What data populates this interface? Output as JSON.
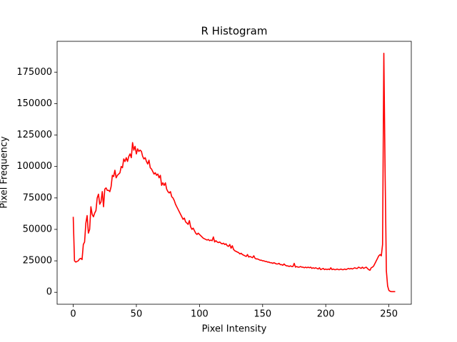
{
  "chart_data": {
    "type": "line",
    "title": "R Histogram",
    "x_label": "Pixel Intensity",
    "y_label": "Pixel Frequency",
    "color": "#ff0000",
    "x": [
      0,
      1,
      2,
      3,
      4,
      5,
      6,
      7,
      8,
      9,
      10,
      11,
      12,
      13,
      14,
      15,
      16,
      17,
      18,
      19,
      20,
      21,
      22,
      23,
      24,
      25,
      26,
      27,
      28,
      29,
      30,
      31,
      32,
      33,
      34,
      35,
      36,
      37,
      38,
      39,
      40,
      41,
      42,
      43,
      44,
      45,
      46,
      47,
      48,
      49,
      50,
      51,
      52,
      53,
      54,
      55,
      56,
      57,
      58,
      59,
      60,
      61,
      62,
      63,
      64,
      65,
      66,
      67,
      68,
      69,
      70,
      71,
      72,
      73,
      74,
      75,
      76,
      77,
      78,
      79,
      80,
      81,
      82,
      83,
      84,
      85,
      86,
      87,
      88,
      89,
      90,
      91,
      92,
      93,
      94,
      95,
      96,
      97,
      98,
      99,
      100,
      101,
      102,
      103,
      104,
      105,
      106,
      107,
      108,
      109,
      110,
      111,
      112,
      113,
      114,
      115,
      116,
      117,
      118,
      119,
      120,
      121,
      122,
      123,
      124,
      125,
      126,
      127,
      128,
      129,
      130,
      131,
      132,
      133,
      134,
      135,
      136,
      137,
      138,
      139,
      140,
      141,
      142,
      143,
      144,
      145,
      146,
      147,
      148,
      149,
      150,
      151,
      152,
      153,
      154,
      155,
      156,
      157,
      158,
      159,
      160,
      161,
      162,
      163,
      164,
      165,
      166,
      167,
      168,
      169,
      170,
      171,
      172,
      173,
      174,
      175,
      176,
      177,
      178,
      179,
      180,
      181,
      182,
      183,
      184,
      185,
      186,
      187,
      188,
      189,
      190,
      191,
      192,
      193,
      194,
      195,
      196,
      197,
      198,
      199,
      200,
      201,
      202,
      203,
      204,
      205,
      206,
      207,
      208,
      209,
      210,
      211,
      212,
      213,
      214,
      215,
      216,
      217,
      218,
      219,
      220,
      221,
      222,
      223,
      224,
      225,
      226,
      227,
      228,
      229,
      230,
      231,
      232,
      233,
      234,
      235,
      236,
      237,
      238,
      239,
      240,
      241,
      242,
      243,
      244,
      245,
      246,
      247,
      248,
      249,
      250,
      251,
      252,
      253,
      254,
      255
    ],
    "values": [
      60000,
      25000,
      24000,
      24500,
      25000,
      26500,
      27000,
      26000,
      38000,
      40000,
      55000,
      61000,
      47000,
      50000,
      68000,
      62000,
      60000,
      63000,
      65000,
      75000,
      78000,
      70000,
      72000,
      80000,
      68000,
      82000,
      83000,
      81000,
      81000,
      80000,
      84000,
      93000,
      92000,
      97000,
      91000,
      93000,
      94000,
      95000,
      100000,
      99000,
      106000,
      104000,
      107000,
      104000,
      108000,
      110000,
      107000,
      119000,
      113000,
      116000,
      110000,
      114000,
      112000,
      113000,
      112000,
      108000,
      106000,
      107000,
      104000,
      102000,
      105000,
      99000,
      98000,
      96000,
      94000,
      95000,
      93000,
      94000,
      91000,
      93000,
      85000,
      87000,
      85000,
      87000,
      82000,
      80000,
      79000,
      80000,
      76000,
      75000,
      73000,
      70000,
      68000,
      66000,
      64000,
      62000,
      60000,
      58000,
      59000,
      56000,
      55000,
      54000,
      57000,
      52000,
      50000,
      51000,
      49000,
      47000,
      46000,
      47000,
      46000,
      45000,
      44000,
      43000,
      42500,
      42000,
      41500,
      42000,
      41000,
      41500,
      41000,
      44000,
      40000,
      41000,
      40000,
      39500,
      40000,
      39000,
      38500,
      39000,
      38000,
      38500,
      37000,
      36500,
      38000,
      35000,
      37000,
      34000,
      33000,
      32500,
      32000,
      31500,
      30500,
      31000,
      30000,
      29500,
      29000,
      28500,
      30000,
      28000,
      28500,
      28000,
      27500,
      29000,
      27000,
      26500,
      26500,
      26000,
      25500,
      25500,
      25000,
      25000,
      24500,
      24500,
      24000,
      24000,
      23500,
      23500,
      23000,
      23500,
      23000,
      22500,
      22500,
      23000,
      22000,
      22000,
      21500,
      22500,
      21500,
      21000,
      21000,
      20500,
      21000,
      20500,
      20500,
      23000,
      20000,
      20500,
      20000,
      20000,
      20500,
      20000,
      20000,
      19500,
      20000,
      19500,
      20000,
      19500,
      20000,
      19000,
      19500,
      19000,
      19500,
      19000,
      18500,
      19500,
      18000,
      18500,
      19000,
      18000,
      18500,
      18000,
      18500,
      18000,
      19500,
      18000,
      18500,
      18000,
      18000,
      18500,
      18000,
      18000,
      18500,
      18000,
      18000,
      18500,
      18000,
      18500,
      19000,
      18500,
      19000,
      18500,
      19000,
      19500,
      19000,
      19000,
      20000,
      19500,
      19000,
      20000,
      19000,
      19500,
      20000,
      19000,
      18000,
      17500,
      19500,
      20000,
      21000,
      23000,
      25000,
      27000,
      29000,
      30000,
      29000,
      38000,
      190000,
      95000,
      17000,
      5000,
      1500,
      800,
      500,
      500,
      500,
      500
    ],
    "xlim": [
      -12.75,
      267.75
    ],
    "ylim": [
      -9500,
      199500
    ],
    "xticks": [
      0,
      50,
      100,
      150,
      200,
      250
    ],
    "yticks": [
      0,
      25000,
      50000,
      75000,
      100000,
      125000,
      150000,
      175000
    ]
  }
}
